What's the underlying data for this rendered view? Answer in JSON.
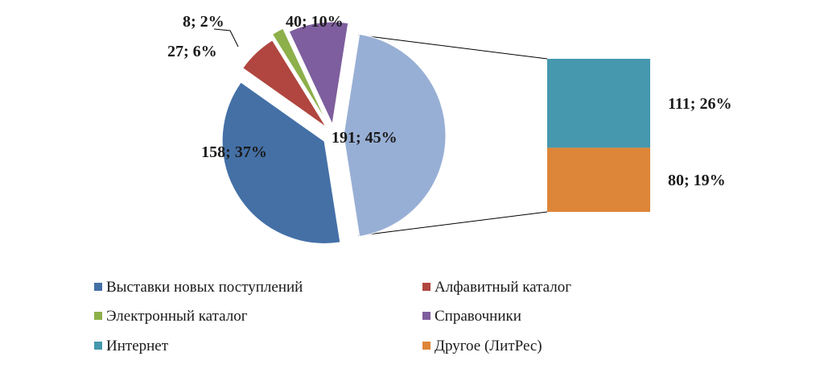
{
  "chart_data": {
    "type": "pie",
    "subtype": "bar-of-pie",
    "title": "",
    "series": [
      {
        "values": [
          158,
          27,
          8,
          40,
          111,
          80
        ],
        "percent_labels": [
          "37%",
          "6%",
          "2%",
          "10%",
          "26%",
          "19%"
        ]
      }
    ],
    "categories": [
      "Выставки новых поступлений",
      "Алфавитный каталог",
      "Электронный каталог",
      "Справочники",
      "Интернет",
      "Другое (ЛитРес)"
    ],
    "colors": [
      "#4470A6",
      "#B0463F",
      "#8DB04A",
      "#7E5E9E",
      "#4598AE",
      "#DD8538"
    ],
    "slice_labels": [
      "158; 37%",
      "27; 6%",
      "8; 2%",
      "40; 10%",
      "111; 26%",
      "80; 19%"
    ],
    "other_slice": {
      "value": 191,
      "label": "191; 45%",
      "color": "#98AFD5",
      "breakdown": [
        "Интернет",
        "Другое (ЛитРес)"
      ]
    },
    "legend_position": "bottom",
    "legend": [
      {
        "label": "Выставки новых поступлений",
        "color": "#4470A6"
      },
      {
        "label": "Алфавитный каталог",
        "color": "#B0463F"
      },
      {
        "label": "Электронный каталог",
        "color": "#8DB04A"
      },
      {
        "label": "Справочники",
        "color": "#7E5E9E"
      },
      {
        "label": "Интернет",
        "color": "#4598AE"
      },
      {
        "label": "Другое (ЛитРес)",
        "color": "#DD8538"
      }
    ]
  }
}
